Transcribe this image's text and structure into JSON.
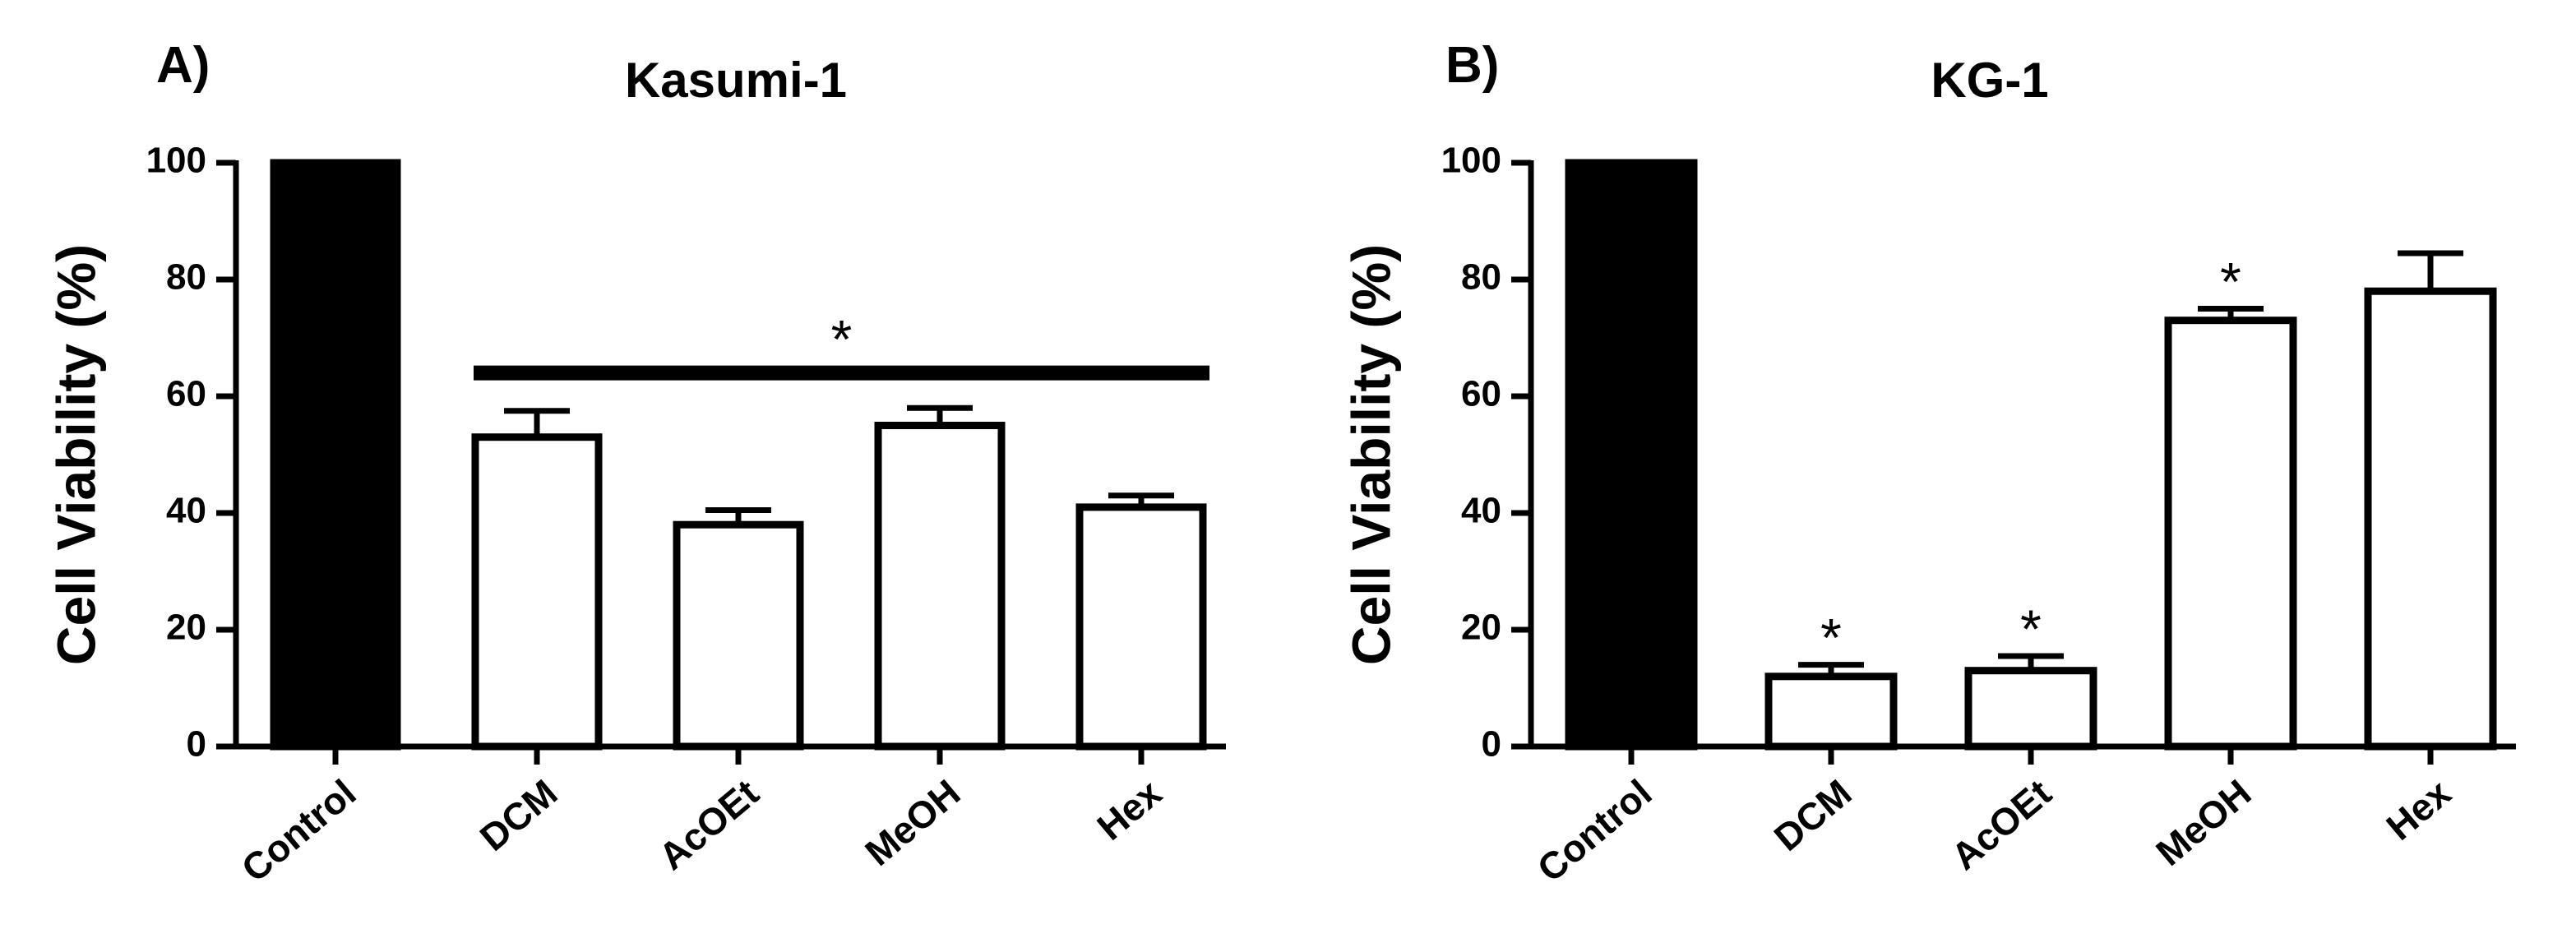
{
  "chart_data": [
    {
      "type": "bar",
      "panel": "A)",
      "title": "Kasumi-1",
      "xlabel": "",
      "ylabel": "Cell Viability (%)",
      "ylim": [
        0,
        100
      ],
      "yticks": [
        0,
        20,
        40,
        60,
        80,
        100
      ],
      "categories": [
        "Control",
        "DCM",
        "AcOEt",
        "MeOH",
        "Hex"
      ],
      "values": [
        100,
        53,
        38,
        55,
        41
      ],
      "errors": [
        0,
        4.5,
        2.5,
        3,
        2
      ],
      "fills": [
        "#000000",
        "#ffffff",
        "#ffffff",
        "#ffffff",
        "#ffffff"
      ],
      "significance": [
        {
          "label": "*",
          "from": "DCM",
          "to": "Hex",
          "y": 64,
          "bar": true
        }
      ]
    },
    {
      "type": "bar",
      "panel": "B)",
      "title": "KG-1",
      "xlabel": "",
      "ylabel": "Cell Viability (%)",
      "ylim": [
        0,
        100
      ],
      "yticks": [
        0,
        20,
        40,
        60,
        80,
        100
      ],
      "categories": [
        "Control",
        "DCM",
        "AcOEt",
        "MeOH",
        "Hex"
      ],
      "values": [
        100,
        12,
        13,
        73,
        78
      ],
      "errors": [
        0,
        2,
        2.5,
        2,
        6.5
      ],
      "fills": [
        "#000000",
        "#ffffff",
        "#ffffff",
        "#ffffff",
        "#ffffff"
      ],
      "significance": [
        {
          "label": "*",
          "category": "DCM"
        },
        {
          "label": "*",
          "category": "AcOEt"
        },
        {
          "label": "*",
          "category": "MeOH"
        }
      ]
    }
  ]
}
